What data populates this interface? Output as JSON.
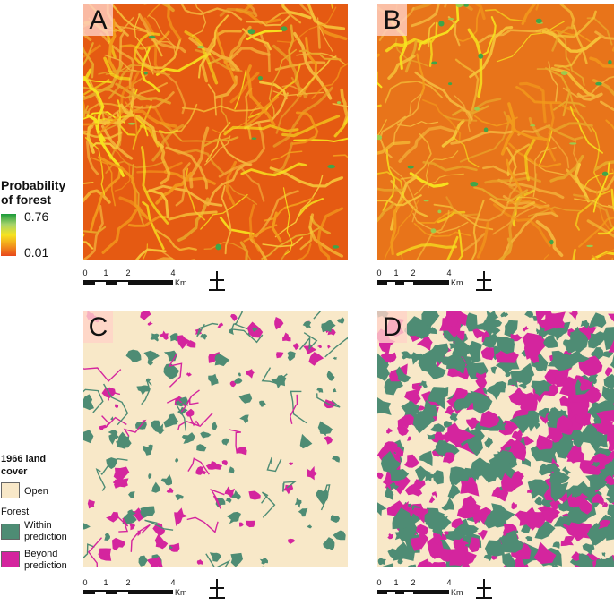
{
  "panels": [
    {
      "letter": "A",
      "base": "#E55A12",
      "variant": "prob_fine",
      "seed": 11
    },
    {
      "letter": "B",
      "base": "#E8741A",
      "variant": "prob_ridge",
      "seed": 23
    },
    {
      "letter": "C",
      "base": "#F8E8C8",
      "variant": "cover_sparse",
      "seed": 37
    },
    {
      "letter": "D",
      "base": "#F8E8C8",
      "variant": "cover_dense",
      "seed": 53
    }
  ],
  "legend_probability": {
    "title_line1": "Probability",
    "title_line2": "of forest",
    "max_label": "0.76",
    "min_label": "0.01",
    "gradient_colors": [
      "#1a9a3a",
      "#a6d36a",
      "#f6e31f",
      "#f29a1c",
      "#e8471c"
    ]
  },
  "legend_cover": {
    "title_line1": "1966 land",
    "title_line2": "cover",
    "open_label": "Open",
    "forest_label": "Forest",
    "within_line1": "Within",
    "within_line2": "prediction",
    "beyond_line1": "Beyond",
    "beyond_line2": "prediction",
    "colors": {
      "open": "#F8E8C8",
      "within": "#4E8C74",
      "beyond": "#D4259E"
    }
  },
  "scale": {
    "ticks": [
      "0",
      "1",
      "2",
      "4"
    ],
    "unit": "Km"
  },
  "icons": {
    "north_arrow": "north-arrow-icon"
  }
}
